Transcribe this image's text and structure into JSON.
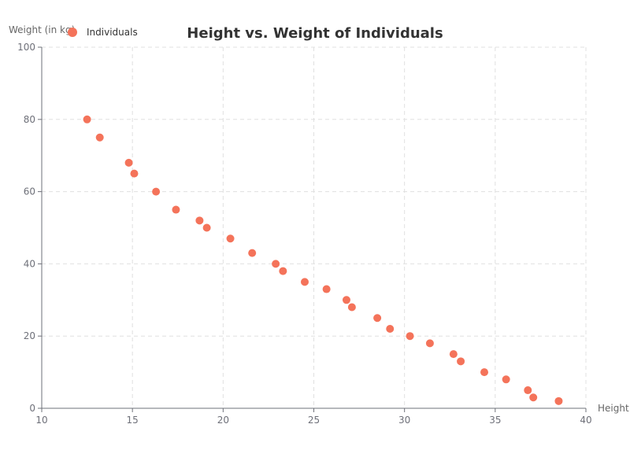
{
  "chart_data": {
    "type": "scatter",
    "title": "Height vs. Weight of Individuals",
    "xlabel": "Height",
    "ylabel": "Weight (in kg)",
    "xlim": [
      10,
      40
    ],
    "ylim": [
      0,
      100
    ],
    "xticks": [
      10,
      15,
      20,
      25,
      30,
      35,
      40
    ],
    "yticks": [
      0,
      20,
      40,
      60,
      80,
      100
    ],
    "grid": true,
    "legend_position": "top-left",
    "series": [
      {
        "name": "Individuals",
        "color": "#f4735a",
        "points": [
          {
            "x": 12.5,
            "y": 80
          },
          {
            "x": 13.2,
            "y": 75
          },
          {
            "x": 14.8,
            "y": 68
          },
          {
            "x": 15.1,
            "y": 65
          },
          {
            "x": 16.3,
            "y": 60
          },
          {
            "x": 17.4,
            "y": 55
          },
          {
            "x": 18.7,
            "y": 52
          },
          {
            "x": 19.1,
            "y": 50
          },
          {
            "x": 20.4,
            "y": 47
          },
          {
            "x": 21.6,
            "y": 43
          },
          {
            "x": 22.9,
            "y": 40
          },
          {
            "x": 23.3,
            "y": 38
          },
          {
            "x": 24.5,
            "y": 35
          },
          {
            "x": 25.7,
            "y": 33
          },
          {
            "x": 26.8,
            "y": 30
          },
          {
            "x": 27.1,
            "y": 28
          },
          {
            "x": 28.5,
            "y": 25
          },
          {
            "x": 29.2,
            "y": 22
          },
          {
            "x": 30.3,
            "y": 20
          },
          {
            "x": 31.4,
            "y": 18
          },
          {
            "x": 32.7,
            "y": 15
          },
          {
            "x": 33.1,
            "y": 13
          },
          {
            "x": 34.4,
            "y": 10
          },
          {
            "x": 35.6,
            "y": 8
          },
          {
            "x": 36.8,
            "y": 5
          },
          {
            "x": 37.1,
            "y": 3
          },
          {
            "x": 38.5,
            "y": 2
          }
        ]
      }
    ]
  }
}
